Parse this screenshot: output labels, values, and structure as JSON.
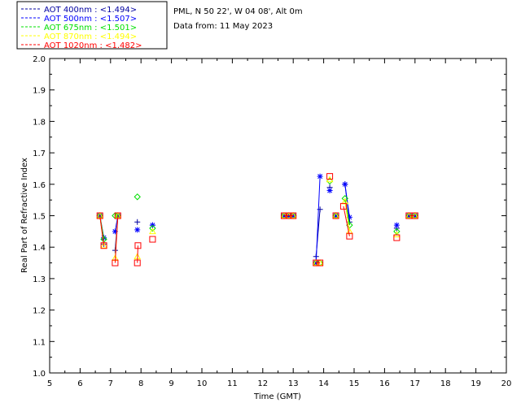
{
  "header": {
    "site": "PML, N 50 22', W 04 08', Alt 0m",
    "date_line": "Data from: 11 May 2023"
  },
  "chart_data": {
    "type": "scatter",
    "title": "",
    "xlabel": "Time (GMT)",
    "ylabel": "Real Part of Refractive Index",
    "xlim": [
      5,
      20
    ],
    "ylim": [
      1.0,
      2.0
    ],
    "xticks": [
      "5",
      "6",
      "7",
      "8",
      "9",
      "10",
      "11",
      "12",
      "13",
      "14",
      "15",
      "16",
      "17",
      "18",
      "19",
      "20"
    ],
    "yticks": [
      "1.0",
      "1.1",
      "1.2",
      "1.3",
      "1.4",
      "1.5",
      "1.6",
      "1.7",
      "1.8",
      "1.9",
      "2.0"
    ],
    "grid": false,
    "legend_position": "top-left",
    "series": [
      {
        "name": "AOT  400nm : <1.494>",
        "color": "#0000a0",
        "marker": "plus",
        "points": [
          [
            6.65,
            1.5
          ],
          [
            6.78,
            1.41
          ],
          [
            7.15,
            1.39
          ],
          [
            7.24,
            1.5
          ],
          [
            7.88,
            1.48
          ],
          [
            8.38,
            1.47
          ],
          [
            12.7,
            1.5
          ],
          [
            12.85,
            1.5
          ],
          [
            13.0,
            1.5
          ],
          [
            13.75,
            1.37
          ],
          [
            13.88,
            1.52
          ],
          [
            14.2,
            1.59
          ],
          [
            14.4,
            1.5
          ],
          [
            14.7,
            1.6
          ],
          [
            14.85,
            1.48
          ],
          [
            16.4,
            1.46
          ],
          [
            16.8,
            1.5
          ],
          [
            17.0,
            1.5
          ]
        ]
      },
      {
        "name": "AOT  500nm : <1.507>",
        "color": "#0000ff",
        "marker": "star",
        "points": [
          [
            6.65,
            1.5
          ],
          [
            6.78,
            1.43
          ],
          [
            7.15,
            1.45
          ],
          [
            7.24,
            1.5
          ],
          [
            7.88,
            1.455
          ],
          [
            8.38,
            1.47
          ],
          [
            12.7,
            1.5
          ],
          [
            12.85,
            1.5
          ],
          [
            13.0,
            1.5
          ],
          [
            13.75,
            1.35
          ],
          [
            13.88,
            1.625
          ],
          [
            14.2,
            1.58
          ],
          [
            14.4,
            1.5
          ],
          [
            14.7,
            1.6
          ],
          [
            14.85,
            1.495
          ],
          [
            16.4,
            1.47
          ],
          [
            16.8,
            1.5
          ],
          [
            17.0,
            1.5
          ]
        ]
      },
      {
        "name": "AOT  675nm : <1.501>",
        "color": "#00e000",
        "marker": "diamond",
        "points": [
          [
            6.65,
            1.5
          ],
          [
            6.78,
            1.425
          ],
          [
            7.15,
            1.5
          ],
          [
            7.24,
            1.5
          ],
          [
            7.88,
            1.56
          ],
          [
            8.38,
            1.46
          ],
          [
            12.7,
            1.5
          ],
          [
            12.85,
            1.5
          ],
          [
            13.0,
            1.5
          ],
          [
            13.75,
            1.35
          ],
          [
            13.88,
            1.35
          ],
          [
            14.2,
            1.61
          ],
          [
            14.4,
            1.5
          ],
          [
            14.7,
            1.555
          ],
          [
            14.85,
            1.47
          ],
          [
            16.4,
            1.45
          ],
          [
            16.8,
            1.5
          ],
          [
            17.0,
            1.5
          ]
        ]
      },
      {
        "name": "AOT  870nm : <1.494>",
        "color": "#ffff00",
        "marker": "triangle",
        "points": [
          [
            6.65,
            1.5
          ],
          [
            6.78,
            1.405
          ],
          [
            7.15,
            1.365
          ],
          [
            7.24,
            1.5
          ],
          [
            7.88,
            1.37
          ],
          [
            8.38,
            1.45
          ],
          [
            12.7,
            1.5
          ],
          [
            12.85,
            1.5
          ],
          [
            13.0,
            1.5
          ],
          [
            13.75,
            1.35
          ],
          [
            13.88,
            1.35
          ],
          [
            14.2,
            1.615
          ],
          [
            14.4,
            1.5
          ],
          [
            14.7,
            1.545
          ],
          [
            14.85,
            1.45
          ],
          [
            16.4,
            1.44
          ],
          [
            16.8,
            1.5
          ],
          [
            17.0,
            1.5
          ]
        ]
      },
      {
        "name": "AOT 1020nm : <1.482>",
        "color": "#ff0000",
        "marker": "square",
        "points": [
          [
            6.65,
            1.5
          ],
          [
            6.78,
            1.405
          ],
          [
            7.15,
            1.35
          ],
          [
            7.24,
            1.5
          ],
          [
            7.88,
            1.35
          ],
          [
            7.9,
            1.405
          ],
          [
            8.38,
            1.425
          ],
          [
            12.7,
            1.5
          ],
          [
            12.85,
            1.5
          ],
          [
            13.0,
            1.5
          ],
          [
            13.75,
            1.35
          ],
          [
            13.88,
            1.35
          ],
          [
            14.2,
            1.625
          ],
          [
            14.4,
            1.5
          ],
          [
            14.65,
            1.53
          ],
          [
            14.85,
            1.435
          ],
          [
            16.4,
            1.43
          ],
          [
            16.8,
            1.5
          ],
          [
            17.0,
            1.5
          ]
        ]
      }
    ]
  }
}
